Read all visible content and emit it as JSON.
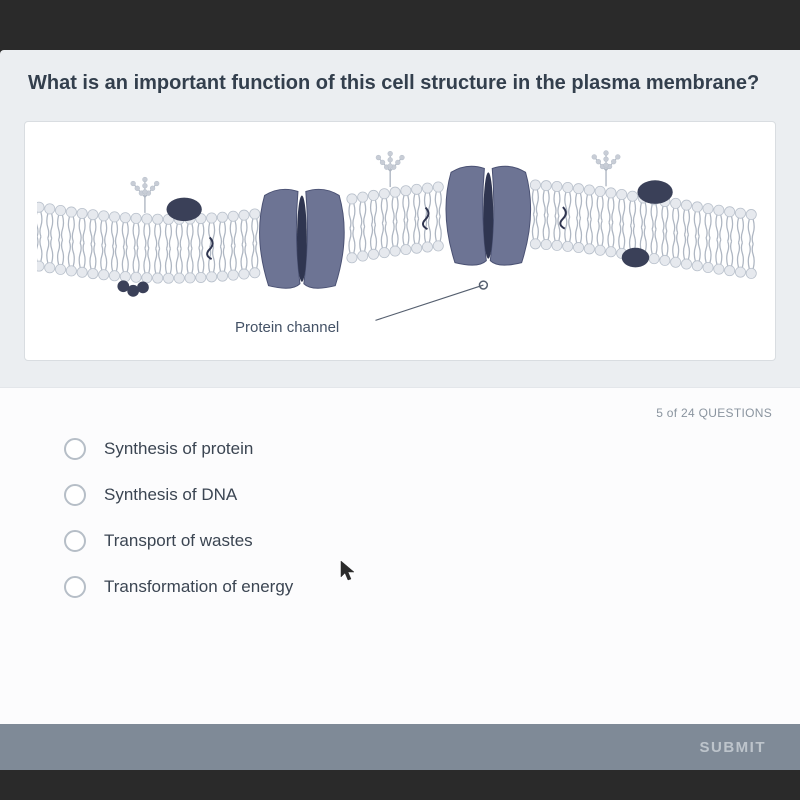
{
  "question": "What is an important function of this cell structure in the plasma membrane?",
  "figure": {
    "label": "Protein channel",
    "colors": {
      "lipid_head": "#e6e9ee",
      "lipid_head_stroke": "#b9c1cc",
      "lipid_tail": "#aeb6c2",
      "protein_fill": "#6d7494",
      "protein_stroke": "#4a5173",
      "glyco_bead": "#c8cdd6",
      "dark_blob": "#3a4058",
      "card_bg": "#ffffff",
      "card_border": "#d9dde1",
      "callout_line": "#555f6f"
    }
  },
  "counter": "5 of 24 QUESTIONS",
  "options": [
    "Synthesis of protein",
    "Synthesis of DNA",
    "Transport of wastes",
    "Transformation of energy"
  ],
  "submit_label": "SUBMIT",
  "styles": {
    "page_bg": "#2a2a2a",
    "panel_bg": "#ebeef1",
    "answers_bg": "#fcfcfd",
    "question_color": "#333f4d",
    "question_fontsize": 20,
    "option_color": "#3b4552",
    "option_fontsize": 17,
    "counter_color": "#8a949f",
    "submit_bar_bg": "#7f8a97",
    "submit_text_color": "#e7ebef",
    "radio_border": "#b6bec7"
  }
}
